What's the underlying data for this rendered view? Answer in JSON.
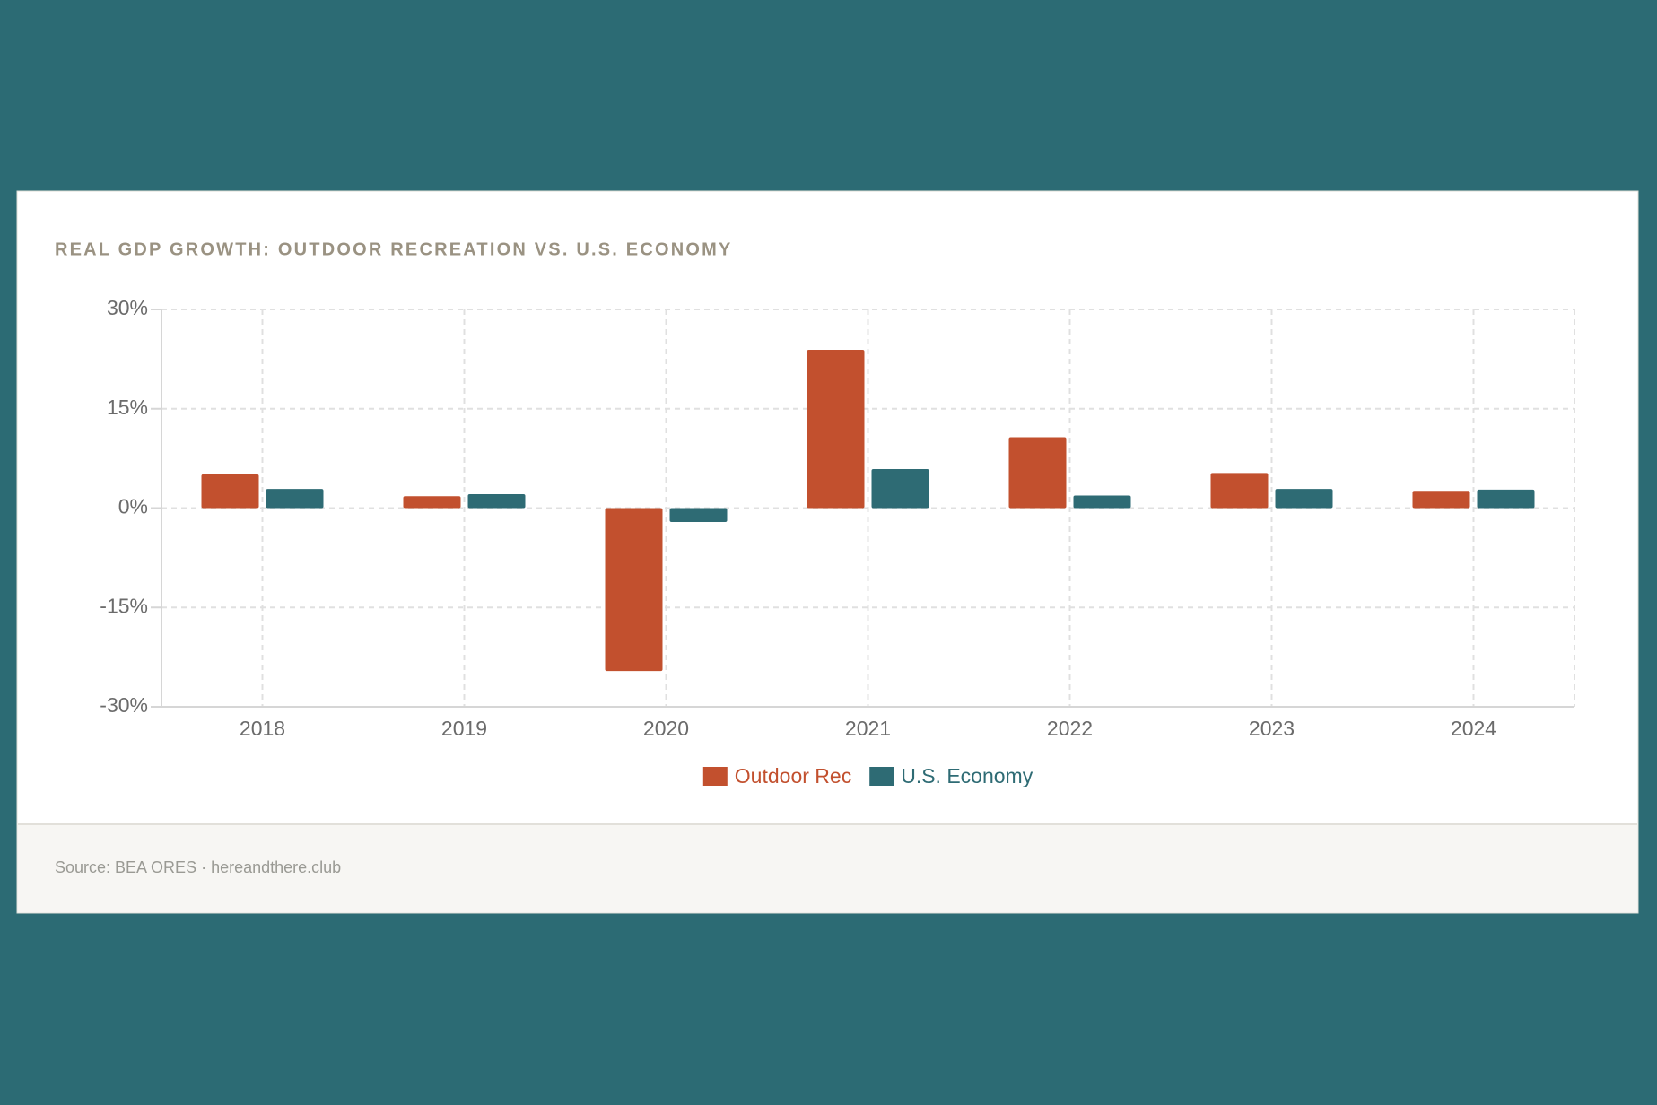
{
  "chart_data": {
    "type": "bar",
    "title": "REAL GDP GROWTH: OUTDOOR RECREATION VS. U.S. ECONOMY",
    "caption": "Source: BEA ORES · hereandthere.club",
    "categories": [
      "2018",
      "2019",
      "2020",
      "2021",
      "2022",
      "2023",
      "2024"
    ],
    "series": [
      {
        "name": "Outdoor Rec",
        "color": "#c2502e",
        "values": [
          5.1,
          1.8,
          -24.6,
          23.9,
          10.7,
          5.3,
          2.6
        ]
      },
      {
        "name": "U.S. Economy",
        "color": "#2e6b74",
        "values": [
          2.9,
          2.1,
          -2.1,
          5.9,
          1.9,
          2.9,
          2.8
        ]
      }
    ],
    "ylim": [
      -30,
      30
    ],
    "yticks": [
      {
        "value": -30,
        "label": "-30%"
      },
      {
        "value": -15,
        "label": "-15%"
      },
      {
        "value": 0,
        "label": "0%"
      },
      {
        "value": 15,
        "label": "15%"
      },
      {
        "value": 30,
        "label": "30%"
      }
    ],
    "grid": true
  }
}
